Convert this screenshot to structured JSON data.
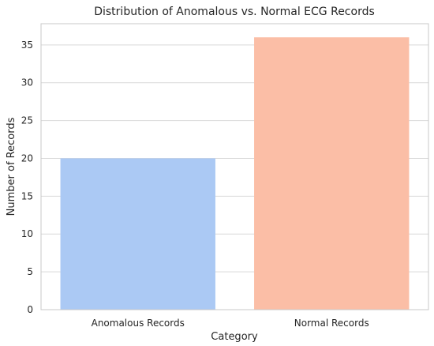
{
  "chart_data": {
    "type": "bar",
    "title": "Distribution of Anomalous vs. Normal ECG Records",
    "xlabel": "Category",
    "ylabel": "Number of Records",
    "categories": [
      "Anomalous Records",
      "Normal Records"
    ],
    "values": [
      20,
      36
    ],
    "ylim": [
      0,
      37.8
    ],
    "yticks": [
      0,
      5,
      10,
      15,
      20,
      25,
      30,
      35
    ],
    "grid": "horizontal",
    "bar_colors": [
      "#abc9f4",
      "#fbbea6"
    ],
    "gridline_color": "#d9d9d9",
    "spine_color": "#c8c8c8",
    "background": "#ffffff"
  }
}
